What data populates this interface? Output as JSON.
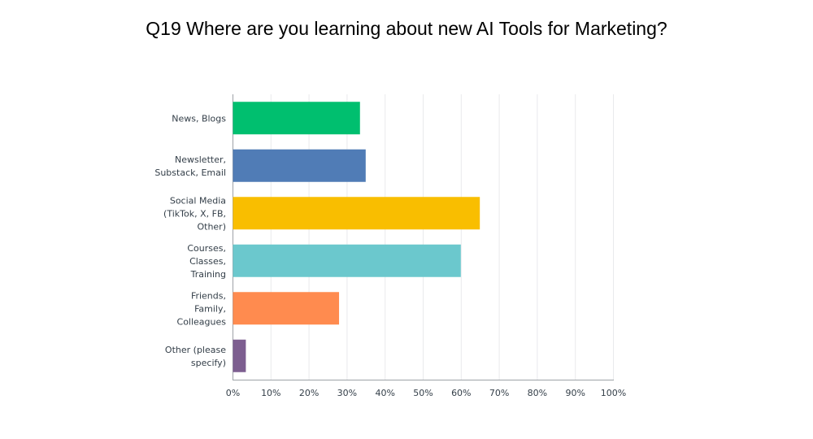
{
  "chart_data": {
    "type": "bar",
    "orientation": "horizontal",
    "title": "Q19 Where are you learning about new AI Tools for Marketing?",
    "categories": [
      [
        "News, Blogs"
      ],
      [
        "Newsletter,",
        "Substack, Email"
      ],
      [
        "Social Media",
        "(TikTok, X, FB,",
        "Other)"
      ],
      [
        "Courses,",
        "Classes,",
        "Training"
      ],
      [
        "Friends,",
        "Family,",
        "Colleagues"
      ],
      [
        "Other (please",
        "specify)"
      ]
    ],
    "values": [
      33.5,
      35,
      65,
      60,
      28,
      3.5
    ],
    "colors": [
      "#00bf6f",
      "#507cb6",
      "#f9be00",
      "#6bc8cd",
      "#ff8b4f",
      "#7d5e90"
    ],
    "xlim": [
      0,
      100
    ],
    "ticks": [
      "0%",
      "10%",
      "20%",
      "30%",
      "40%",
      "50%",
      "60%",
      "70%",
      "80%",
      "90%",
      "100%"
    ],
    "grid": true
  }
}
